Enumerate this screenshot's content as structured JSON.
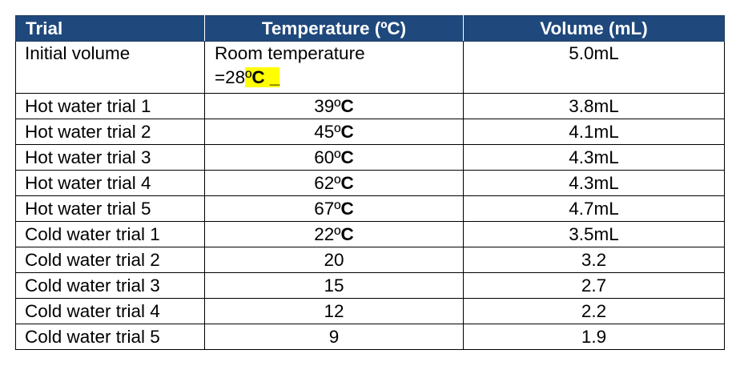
{
  "table": {
    "headers": [
      "Trial",
      "Temperature (ºC)",
      "Volume (mL)"
    ],
    "initial": {
      "trial": "Initial volume",
      "temperature_line1": "Room temperature",
      "temperature_prefix": "=28",
      "temperature_degree": "º",
      "temperature_unit": "C _",
      "volume": "5.0mL"
    },
    "rows": [
      {
        "trial": "Hot water trial 1",
        "temp_value": "39º",
        "temp_unit": "C",
        "volume": "3.8mL"
      },
      {
        "trial": "Hot water trial 2",
        "temp_value": "45º",
        "temp_unit": "C",
        "volume": "4.1mL"
      },
      {
        "trial": "Hot water trial 3",
        "temp_value": "60º",
        "temp_unit": "C",
        "volume": "4.3mL"
      },
      {
        "trial": "Hot water trial 4",
        "temp_value": "62º",
        "temp_unit": "C",
        "volume": "4.3mL"
      },
      {
        "trial": "Hot water trial 5",
        "temp_value": "67º",
        "temp_unit": "C",
        "volume": "4.7mL"
      },
      {
        "trial": "Cold water trial 1",
        "temp_value": "22º",
        "temp_unit": "C",
        "volume": "3.5mL"
      },
      {
        "trial": "Cold water trial 2",
        "temp_value": "20",
        "temp_unit": "",
        "volume": "3.2"
      },
      {
        "trial": "Cold water trial 3",
        "temp_value": "15",
        "temp_unit": "",
        "volume": "2.7"
      },
      {
        "trial": "Cold water trial 4",
        "temp_value": "12",
        "temp_unit": "",
        "volume": "2.2"
      },
      {
        "trial": "Cold water trial 5",
        "temp_value": "9",
        "temp_unit": "",
        "volume": "1.9"
      }
    ]
  },
  "colors": {
    "header_background": "#1f497d",
    "header_text": "#ffffff",
    "highlight": "#ffff00"
  }
}
